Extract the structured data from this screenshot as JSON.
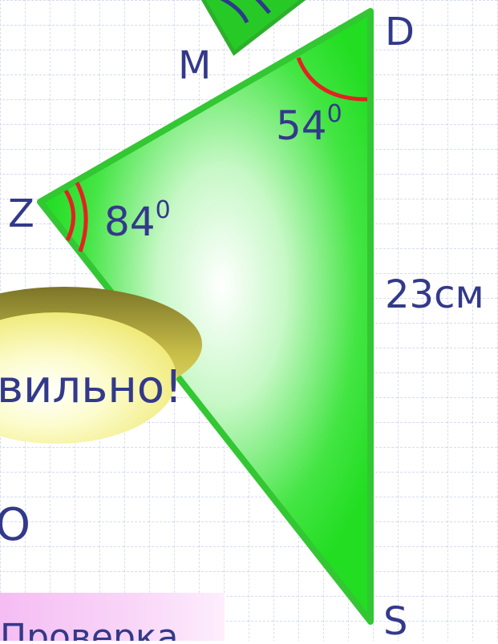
{
  "triangle": {
    "vertex_z": "Z",
    "vertex_d": "D",
    "vertex_s": "S",
    "vertex_m": "M",
    "angle_z": "84",
    "angle_z_sup": "0",
    "angle_d": "54",
    "angle_d_sup": "0",
    "side_ds": "23см"
  },
  "feedback": {
    "text": "вильно!"
  },
  "partial_text": "О",
  "check_button": {
    "label": "Проверка"
  },
  "colors": {
    "triangle_fill": "#22dd22",
    "triangle_stroke": "#33c733",
    "angle_arc": "#e32222",
    "label_text": "#33398a",
    "grid": "#c9d1ec",
    "oval": "#e8e070"
  }
}
